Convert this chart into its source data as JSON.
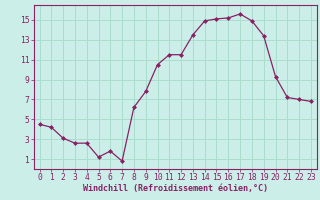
{
  "x": [
    0,
    1,
    2,
    3,
    4,
    5,
    6,
    7,
    8,
    9,
    10,
    11,
    12,
    13,
    14,
    15,
    16,
    17,
    18,
    19,
    20,
    21,
    22,
    23
  ],
  "y": [
    4.5,
    4.2,
    3.1,
    2.6,
    2.6,
    1.2,
    1.8,
    0.8,
    6.2,
    7.8,
    10.5,
    11.5,
    11.5,
    13.5,
    14.9,
    15.1,
    15.2,
    15.6,
    14.9,
    13.4,
    9.3,
    7.2,
    7.0,
    6.8
  ],
  "line_color": "#882266",
  "marker": "D",
  "marker_size": 2.0,
  "bg_color": "#cceee8",
  "grid_color": "#aaddcc",
  "xlabel": "Windchill (Refroidissement éolien,°C)",
  "xlabel_fontsize": 6.0,
  "tick_color": "#882266",
  "tick_fontsize": 5.8,
  "xlim": [
    -0.5,
    23.5
  ],
  "ylim": [
    0,
    16.5
  ],
  "yticks": [
    1,
    3,
    5,
    7,
    9,
    11,
    13,
    15
  ],
  "xticks": [
    0,
    1,
    2,
    3,
    4,
    5,
    6,
    7,
    8,
    9,
    10,
    11,
    12,
    13,
    14,
    15,
    16,
    17,
    18,
    19,
    20,
    21,
    22,
    23
  ]
}
